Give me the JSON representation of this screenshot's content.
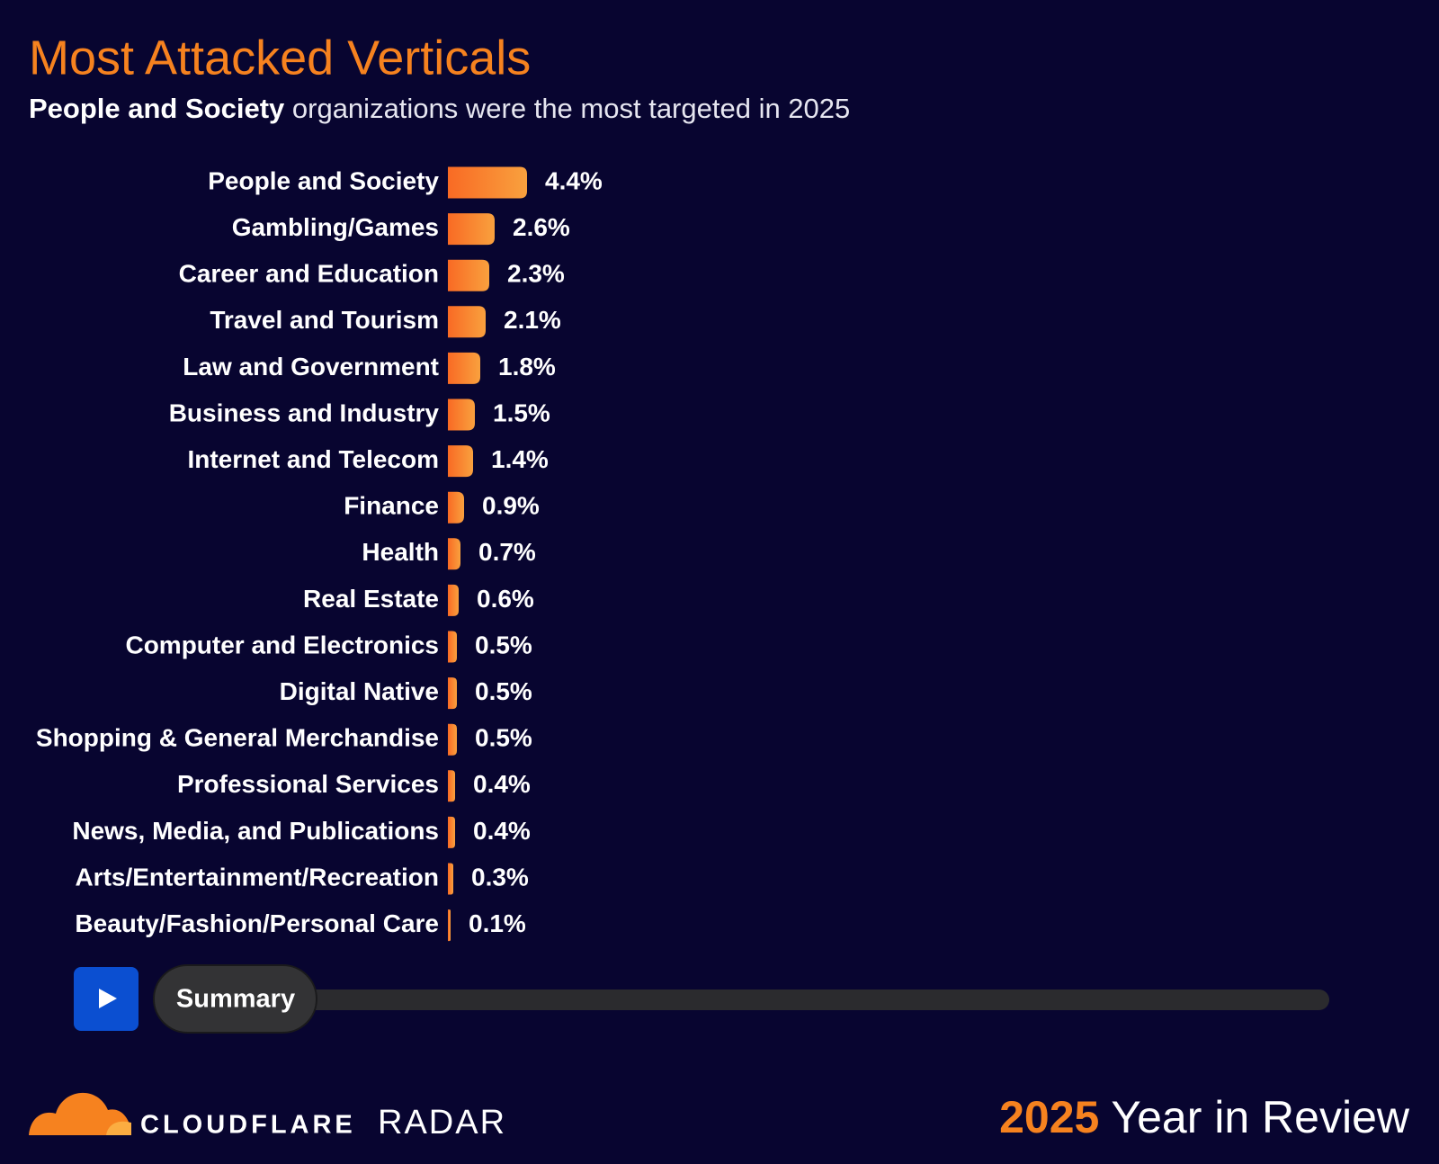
{
  "chart_data": {
    "type": "bar",
    "orientation": "horizontal",
    "title": "Most Attacked Verticals",
    "subtitle": {
      "bold": "People and Society",
      "rest": "organizations were the most targeted in 2025"
    },
    "categories": [
      "People and Society",
      "Gambling/Games",
      "Career and Education",
      "Travel and Tourism",
      "Law and Government",
      "Business and Industry",
      "Internet and Telecom",
      "Finance",
      "Health",
      "Real Estate",
      "Computer and Electronics",
      "Digital Native",
      "Shopping & General Merchandise",
      "Professional Services",
      "News, Media, and Publications",
      "Arts/Entertainment/Recreation",
      "Beauty/Fashion/Personal Care"
    ],
    "values": [
      4.4,
      2.6,
      2.3,
      2.1,
      1.8,
      1.5,
      1.4,
      0.9,
      0.7,
      0.6,
      0.5,
      0.5,
      0.5,
      0.4,
      0.4,
      0.3,
      0.1
    ],
    "value_labels": [
      "4.4%",
      "2.6%",
      "2.3%",
      "2.1%",
      "1.8%",
      "1.5%",
      "1.4%",
      "0.9%",
      "0.7%",
      "0.6%",
      "0.5%",
      "0.5%",
      "0.5%",
      "0.4%",
      "0.4%",
      "0.3%",
      "0.1%"
    ],
    "color": "#f6821f"
  },
  "player": {
    "label": "Summary"
  },
  "footer": {
    "brand": "CLOUDFLARE",
    "product": "RADAR",
    "year": "2025",
    "review": "Year in Review"
  }
}
